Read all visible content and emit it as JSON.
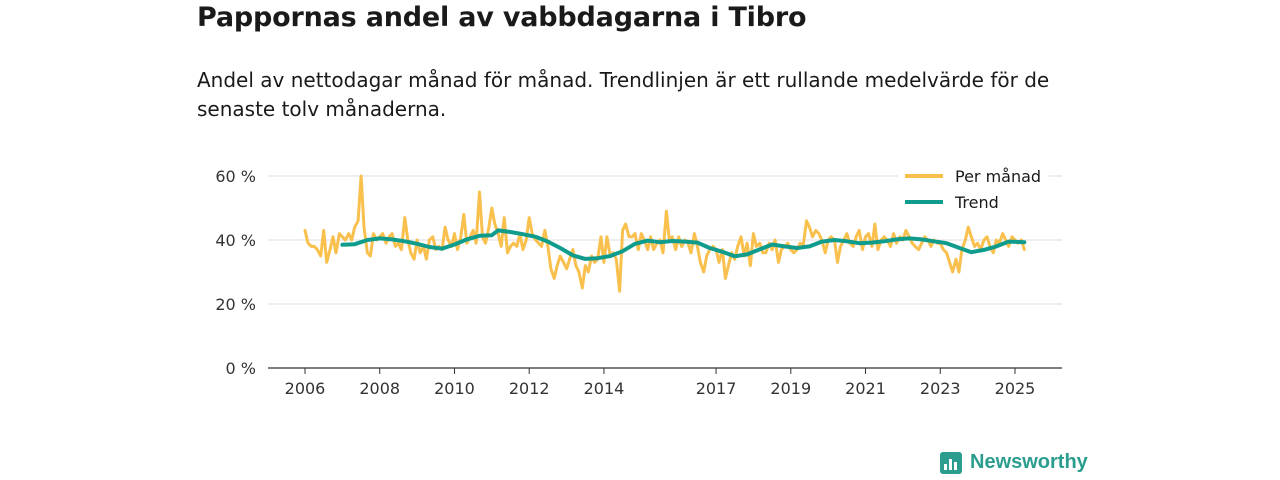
{
  "chart_data": {
    "type": "line",
    "title": "Pappornas andel av vabbdagarna i Tibro",
    "subtitle": "Andel av nettodagar månad för månad. Trendlinjen är ett rullande medelvärde för de senaste tolv månaderna.",
    "xlabel": "",
    "ylabel": "",
    "ylim": [
      0,
      60
    ],
    "xlim": [
      2006,
      2025.5
    ],
    "y_ticks": [
      {
        "value": 0,
        "label": "0 %"
      },
      {
        "value": 20,
        "label": "20 %"
      },
      {
        "value": 40,
        "label": "40 %"
      },
      {
        "value": 60,
        "label": "60 %"
      }
    ],
    "x_ticks": [
      {
        "value": 2006,
        "label": "2006"
      },
      {
        "value": 2008,
        "label": "2008"
      },
      {
        "value": 2010,
        "label": "2010"
      },
      {
        "value": 2012,
        "label": "2012"
      },
      {
        "value": 2014,
        "label": "2014"
      },
      {
        "value": 2017,
        "label": "2017"
      },
      {
        "value": 2019,
        "label": "2019"
      },
      {
        "value": 2021,
        "label": "2021"
      },
      {
        "value": 2023,
        "label": "2023"
      },
      {
        "value": 2025,
        "label": "2025"
      }
    ],
    "grid": true,
    "legend_position": "top-right",
    "series": [
      {
        "name": "Per månad",
        "color": "#f9c04e",
        "points": [
          [
            2006.0,
            43
          ],
          [
            2006.08,
            39
          ],
          [
            2006.17,
            38
          ],
          [
            2006.25,
            38
          ],
          [
            2006.33,
            37
          ],
          [
            2006.42,
            35
          ],
          [
            2006.5,
            43
          ],
          [
            2006.58,
            33
          ],
          [
            2006.67,
            37
          ],
          [
            2006.75,
            41
          ],
          [
            2006.83,
            36
          ],
          [
            2006.92,
            42
          ],
          [
            2007.0,
            41
          ],
          [
            2007.08,
            40
          ],
          [
            2007.17,
            42
          ],
          [
            2007.25,
            40
          ],
          [
            2007.33,
            44
          ],
          [
            2007.42,
            46
          ],
          [
            2007.5,
            60
          ],
          [
            2007.58,
            44
          ],
          [
            2007.67,
            36
          ],
          [
            2007.75,
            35
          ],
          [
            2007.83,
            42
          ],
          [
            2007.92,
            40
          ],
          [
            2008.0,
            41
          ],
          [
            2008.08,
            42
          ],
          [
            2008.17,
            39
          ],
          [
            2008.25,
            41
          ],
          [
            2008.33,
            42
          ],
          [
            2008.42,
            38
          ],
          [
            2008.5,
            39
          ],
          [
            2008.58,
            37
          ],
          [
            2008.67,
            47
          ],
          [
            2008.75,
            40
          ],
          [
            2008.83,
            36
          ],
          [
            2008.92,
            34
          ],
          [
            2009.0,
            40
          ],
          [
            2009.08,
            36
          ],
          [
            2009.17,
            38
          ],
          [
            2009.25,
            34
          ],
          [
            2009.33,
            40
          ],
          [
            2009.42,
            41
          ],
          [
            2009.5,
            37
          ],
          [
            2009.58,
            38
          ],
          [
            2009.67,
            37
          ],
          [
            2009.75,
            44
          ],
          [
            2009.83,
            40
          ],
          [
            2009.92,
            38
          ],
          [
            2010.0,
            42
          ],
          [
            2010.08,
            37
          ],
          [
            2010.17,
            41
          ],
          [
            2010.25,
            48
          ],
          [
            2010.33,
            39
          ],
          [
            2010.42,
            41
          ],
          [
            2010.5,
            43
          ],
          [
            2010.58,
            39
          ],
          [
            2010.67,
            55
          ],
          [
            2010.75,
            41
          ],
          [
            2010.83,
            39
          ],
          [
            2010.92,
            44
          ],
          [
            2011.0,
            50
          ],
          [
            2011.08,
            45
          ],
          [
            2011.17,
            42
          ],
          [
            2011.25,
            38
          ],
          [
            2011.33,
            47
          ],
          [
            2011.42,
            36
          ],
          [
            2011.5,
            38
          ],
          [
            2011.58,
            39
          ],
          [
            2011.67,
            38
          ],
          [
            2011.75,
            42
          ],
          [
            2011.83,
            37
          ],
          [
            2011.92,
            40
          ],
          [
            2012.0,
            47
          ],
          [
            2012.08,
            42
          ],
          [
            2012.17,
            40
          ],
          [
            2012.25,
            39
          ],
          [
            2012.33,
            38
          ],
          [
            2012.42,
            43
          ],
          [
            2012.5,
            38
          ],
          [
            2012.58,
            31
          ],
          [
            2012.67,
            28
          ],
          [
            2012.75,
            32
          ],
          [
            2012.83,
            35
          ],
          [
            2012.92,
            33
          ],
          [
            2013.0,
            31
          ],
          [
            2013.08,
            34
          ],
          [
            2013.17,
            37
          ],
          [
            2013.25,
            32
          ],
          [
            2013.33,
            30
          ],
          [
            2013.42,
            25
          ],
          [
            2013.5,
            32
          ],
          [
            2013.58,
            30
          ],
          [
            2013.67,
            35
          ],
          [
            2013.75,
            33
          ],
          [
            2013.83,
            34
          ],
          [
            2013.92,
            41
          ],
          [
            2014.0,
            33
          ],
          [
            2014.08,
            41
          ],
          [
            2014.17,
            35
          ],
          [
            2014.25,
            36
          ],
          [
            2014.33,
            34
          ],
          [
            2014.42,
            24
          ],
          [
            2014.5,
            43
          ],
          [
            2014.58,
            45
          ],
          [
            2014.67,
            41
          ],
          [
            2014.75,
            41
          ],
          [
            2014.83,
            42
          ],
          [
            2014.92,
            37
          ],
          [
            2015.0,
            42
          ],
          [
            2015.08,
            40
          ],
          [
            2015.17,
            37
          ],
          [
            2015.25,
            41
          ],
          [
            2015.33,
            37
          ],
          [
            2015.42,
            39
          ],
          [
            2015.5,
            40
          ],
          [
            2015.58,
            36
          ],
          [
            2015.67,
            49
          ],
          [
            2015.75,
            40
          ],
          [
            2015.83,
            41
          ],
          [
            2015.92,
            37
          ],
          [
            2016.0,
            41
          ],
          [
            2016.08,
            38
          ],
          [
            2016.17,
            40
          ],
          [
            2016.25,
            39
          ],
          [
            2016.33,
            36
          ],
          [
            2016.42,
            42
          ],
          [
            2016.5,
            38
          ],
          [
            2016.58,
            33
          ],
          [
            2016.67,
            30
          ],
          [
            2016.75,
            35
          ],
          [
            2016.83,
            37
          ],
          [
            2016.92,
            38
          ],
          [
            2017.0,
            37
          ],
          [
            2017.08,
            33
          ],
          [
            2017.17,
            37
          ],
          [
            2017.25,
            28
          ],
          [
            2017.33,
            32
          ],
          [
            2017.42,
            36
          ],
          [
            2017.5,
            34
          ],
          [
            2017.58,
            38
          ],
          [
            2017.67,
            41
          ],
          [
            2017.75,
            35
          ],
          [
            2017.83,
            39
          ],
          [
            2017.92,
            32
          ],
          [
            2018.0,
            42
          ],
          [
            2018.08,
            38
          ],
          [
            2018.17,
            39
          ],
          [
            2018.25,
            36
          ],
          [
            2018.33,
            36
          ],
          [
            2018.42,
            39
          ],
          [
            2018.5,
            37
          ],
          [
            2018.58,
            40
          ],
          [
            2018.67,
            33
          ],
          [
            2018.75,
            37
          ],
          [
            2018.83,
            38
          ],
          [
            2018.92,
            39
          ],
          [
            2019.0,
            37
          ],
          [
            2019.08,
            36
          ],
          [
            2019.17,
            37
          ],
          [
            2019.25,
            39
          ],
          [
            2019.33,
            38
          ],
          [
            2019.42,
            46
          ],
          [
            2019.5,
            44
          ],
          [
            2019.58,
            41
          ],
          [
            2019.67,
            43
          ],
          [
            2019.75,
            42
          ],
          [
            2019.83,
            40
          ],
          [
            2019.92,
            36
          ],
          [
            2020.0,
            40
          ],
          [
            2020.08,
            41
          ],
          [
            2020.17,
            40
          ],
          [
            2020.25,
            33
          ],
          [
            2020.33,
            38
          ],
          [
            2020.42,
            40
          ],
          [
            2020.5,
            42
          ],
          [
            2020.58,
            39
          ],
          [
            2020.67,
            38
          ],
          [
            2020.75,
            41
          ],
          [
            2020.83,
            43
          ],
          [
            2020.92,
            37
          ],
          [
            2021.0,
            41
          ],
          [
            2021.08,
            42
          ],
          [
            2021.17,
            38
          ],
          [
            2021.25,
            45
          ],
          [
            2021.33,
            37
          ],
          [
            2021.42,
            40
          ],
          [
            2021.5,
            41
          ],
          [
            2021.58,
            40
          ],
          [
            2021.67,
            38
          ],
          [
            2021.75,
            42
          ],
          [
            2021.83,
            39
          ],
          [
            2021.92,
            41
          ],
          [
            2022.0,
            40
          ],
          [
            2022.08,
            43
          ],
          [
            2022.17,
            41
          ],
          [
            2022.25,
            39
          ],
          [
            2022.33,
            38
          ],
          [
            2022.42,
            37
          ],
          [
            2022.5,
            39
          ],
          [
            2022.58,
            41
          ],
          [
            2022.67,
            40
          ],
          [
            2022.75,
            38
          ],
          [
            2022.83,
            40
          ],
          [
            2022.92,
            39
          ],
          [
            2023.0,
            39
          ],
          [
            2023.08,
            37
          ],
          [
            2023.17,
            36
          ],
          [
            2023.25,
            33
          ],
          [
            2023.33,
            30
          ],
          [
            2023.42,
            34
          ],
          [
            2023.5,
            30
          ],
          [
            2023.58,
            37
          ],
          [
            2023.67,
            40
          ],
          [
            2023.75,
            44
          ],
          [
            2023.83,
            41
          ],
          [
            2023.92,
            38
          ],
          [
            2024.0,
            39
          ],
          [
            2024.08,
            37
          ],
          [
            2024.17,
            40
          ],
          [
            2024.25,
            41
          ],
          [
            2024.33,
            38
          ],
          [
            2024.42,
            36
          ],
          [
            2024.5,
            40
          ],
          [
            2024.58,
            39
          ],
          [
            2024.67,
            42
          ],
          [
            2024.75,
            40
          ],
          [
            2024.83,
            38
          ],
          [
            2024.92,
            41
          ],
          [
            2025.0,
            40
          ],
          [
            2025.08,
            39
          ],
          [
            2025.17,
            40
          ],
          [
            2025.25,
            37
          ]
        ]
      },
      {
        "name": "Trend",
        "color": "#0f9c8c",
        "points": [
          [
            2007.0,
            38.5
          ],
          [
            2007.33,
            38.7
          ],
          [
            2007.67,
            40.0
          ],
          [
            2008.0,
            40.5
          ],
          [
            2008.33,
            40.2
          ],
          [
            2008.67,
            39.6
          ],
          [
            2009.0,
            38.8
          ],
          [
            2009.33,
            37.8
          ],
          [
            2009.67,
            37.3
          ],
          [
            2010.0,
            38.6
          ],
          [
            2010.33,
            40.2
          ],
          [
            2010.67,
            41.3
          ],
          [
            2011.0,
            41.5
          ],
          [
            2011.17,
            43.0
          ],
          [
            2011.5,
            42.5
          ],
          [
            2011.83,
            41.8
          ],
          [
            2012.17,
            41.0
          ],
          [
            2012.5,
            39.5
          ],
          [
            2012.83,
            37.5
          ],
          [
            2013.17,
            35.2
          ],
          [
            2013.5,
            34.1
          ],
          [
            2013.83,
            34.3
          ],
          [
            2014.17,
            35.0
          ],
          [
            2014.5,
            36.5
          ],
          [
            2014.83,
            38.8
          ],
          [
            2015.17,
            39.8
          ],
          [
            2015.5,
            39.3
          ],
          [
            2015.83,
            39.7
          ],
          [
            2016.17,
            39.5
          ],
          [
            2016.5,
            39.2
          ],
          [
            2016.83,
            37.5
          ],
          [
            2017.17,
            36.3
          ],
          [
            2017.5,
            34.9
          ],
          [
            2017.83,
            35.5
          ],
          [
            2018.17,
            37.1
          ],
          [
            2018.5,
            38.6
          ],
          [
            2018.83,
            38.0
          ],
          [
            2019.17,
            37.5
          ],
          [
            2019.5,
            38.0
          ],
          [
            2019.83,
            39.5
          ],
          [
            2020.17,
            40.0
          ],
          [
            2020.5,
            39.6
          ],
          [
            2020.83,
            39.0
          ],
          [
            2021.17,
            39.2
          ],
          [
            2021.5,
            39.6
          ],
          [
            2021.83,
            40.2
          ],
          [
            2022.17,
            40.5
          ],
          [
            2022.5,
            40.2
          ],
          [
            2022.83,
            39.6
          ],
          [
            2023.17,
            39.0
          ],
          [
            2023.5,
            37.6
          ],
          [
            2023.83,
            36.2
          ],
          [
            2024.17,
            36.9
          ],
          [
            2024.5,
            38.0
          ],
          [
            2024.83,
            39.5
          ],
          [
            2025.25,
            39.3
          ]
        ]
      }
    ]
  },
  "brand": {
    "name": "Newsworthy",
    "icon": "newsworthy-logo-icon",
    "color": "#2a9d8f"
  }
}
